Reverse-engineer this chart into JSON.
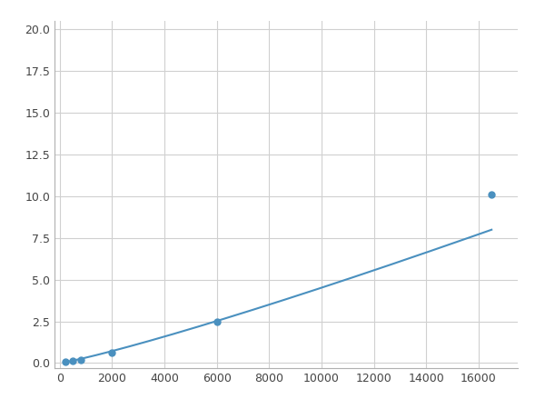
{
  "x": [
    200,
    500,
    800,
    2000,
    6000,
    16500
  ],
  "y": [
    0.08,
    0.13,
    0.18,
    0.6,
    2.5,
    10.1
  ],
  "line_color": "#4A90BF",
  "marker_color": "#4A90BF",
  "marker_size": 5,
  "xlim": [
    -200,
    17500
  ],
  "ylim": [
    -0.3,
    20.5
  ],
  "xticks": [
    0,
    2000,
    4000,
    6000,
    8000,
    10000,
    12000,
    14000,
    16000
  ],
  "yticks": [
    0.0,
    2.5,
    5.0,
    7.5,
    10.0,
    12.5,
    15.0,
    17.5,
    20.0
  ],
  "grid_color": "#d0d0d0",
  "background_color": "#ffffff",
  "fig_width": 6.0,
  "fig_height": 4.5
}
